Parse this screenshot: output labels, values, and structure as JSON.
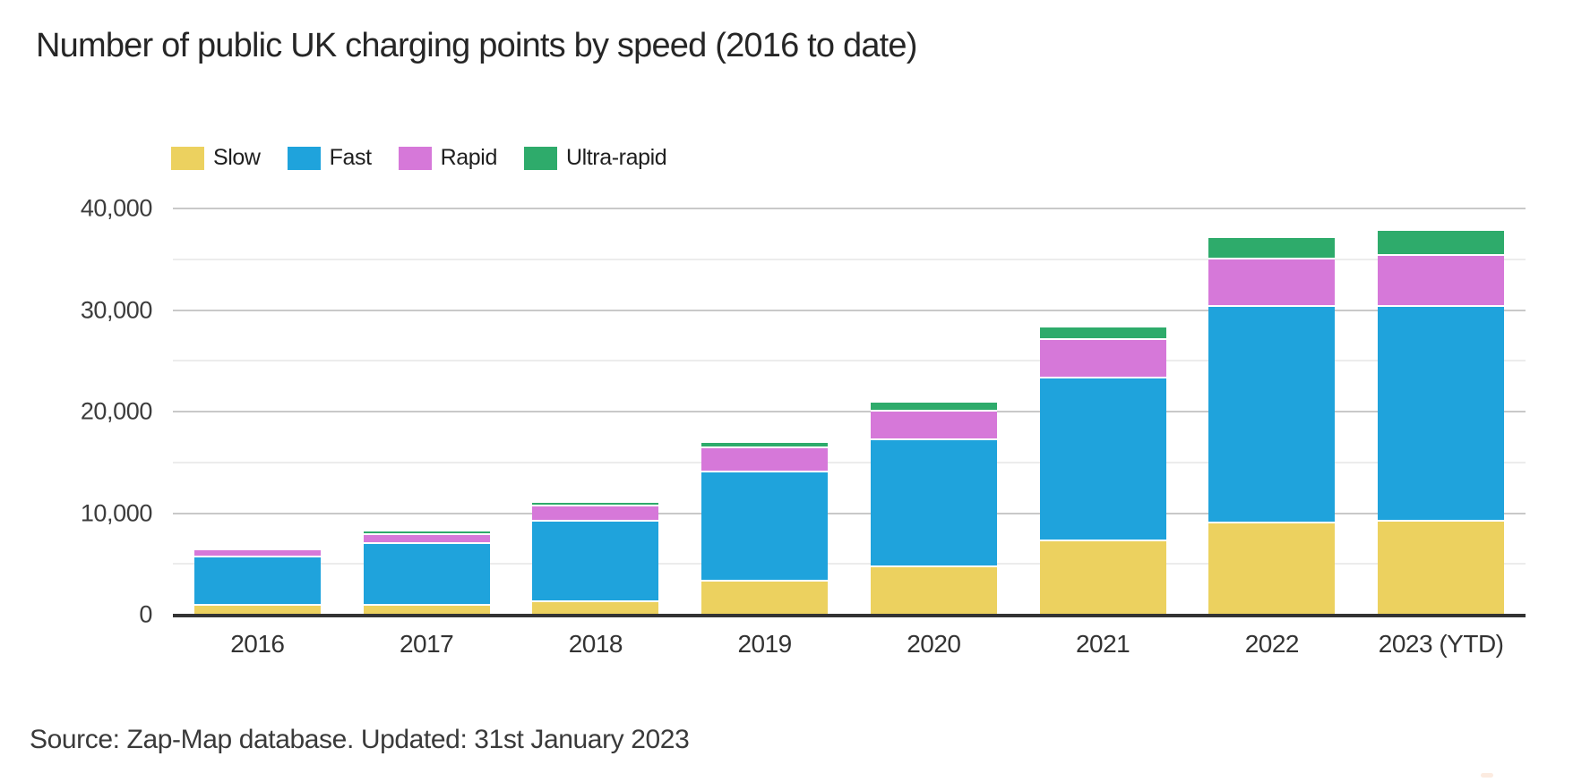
{
  "title": "Number of public UK charging points by speed (2016 to date)",
  "source_note": "Source: Zap-Map database. Updated: 31st January 2023",
  "legend": {
    "items": [
      {
        "label": "Slow",
        "color": "#ecd15f"
      },
      {
        "label": "Fast",
        "color": "#1fa3dc"
      },
      {
        "label": "Rapid",
        "color": "#d678d9"
      },
      {
        "label": "Ultra-rapid",
        "color": "#2eab6b"
      }
    ]
  },
  "y_axis": {
    "ticks": [
      {
        "value": 40000,
        "label": "40,000"
      },
      {
        "value": 30000,
        "label": "30,000"
      },
      {
        "value": 20000,
        "label": "20,000"
      },
      {
        "value": 10000,
        "label": "10,000"
      },
      {
        "value": 0,
        "label": "0"
      }
    ],
    "minor_gridlines": [
      35000,
      25000,
      15000,
      5000
    ]
  },
  "chart_data": {
    "type": "bar",
    "stacked": true,
    "title": "Number of public UK charging points by speed (2016 to date)",
    "categories": [
      "2016",
      "2017",
      "2018",
      "2019",
      "2020",
      "2021",
      "2022",
      "2023 (YTD)"
    ],
    "series": [
      {
        "name": "Slow",
        "color": "#ecd15f",
        "values": [
          850,
          900,
          1200,
          3300,
          4650,
          7200,
          9000,
          9200
        ]
      },
      {
        "name": "Fast",
        "color": "#1fa3dc",
        "values": [
          4800,
          6100,
          7950,
          10750,
          12500,
          16100,
          21300,
          21150
        ]
      },
      {
        "name": "Rapid",
        "color": "#d678d9",
        "values": [
          700,
          850,
          1500,
          2300,
          2850,
          3750,
          4650,
          5000
        ]
      },
      {
        "name": "Ultra-rapid",
        "color": "#2eab6b",
        "values": [
          200,
          350,
          400,
          550,
          850,
          1200,
          2150,
          2450
        ]
      }
    ],
    "totals": [
      6550,
      8200,
      11050,
      16900,
      20850,
      28250,
      37100,
      37800
    ],
    "xlabel": "",
    "ylabel": "",
    "ylim": [
      0,
      40000
    ],
    "y_major_ticks": [
      0,
      10000,
      20000,
      30000,
      40000
    ],
    "grid": "horizontal, minor every 5000",
    "legend_position": "top-left",
    "source": "Source: Zap-Map database. Updated: 31st January 2023"
  },
  "colors": {
    "background": "#ffffff",
    "axis_line": "#333333",
    "major_grid": "#c9c9c9",
    "minor_grid": "#ececec",
    "title_text": "#262626",
    "axis_text": "#3c3c3c"
  }
}
